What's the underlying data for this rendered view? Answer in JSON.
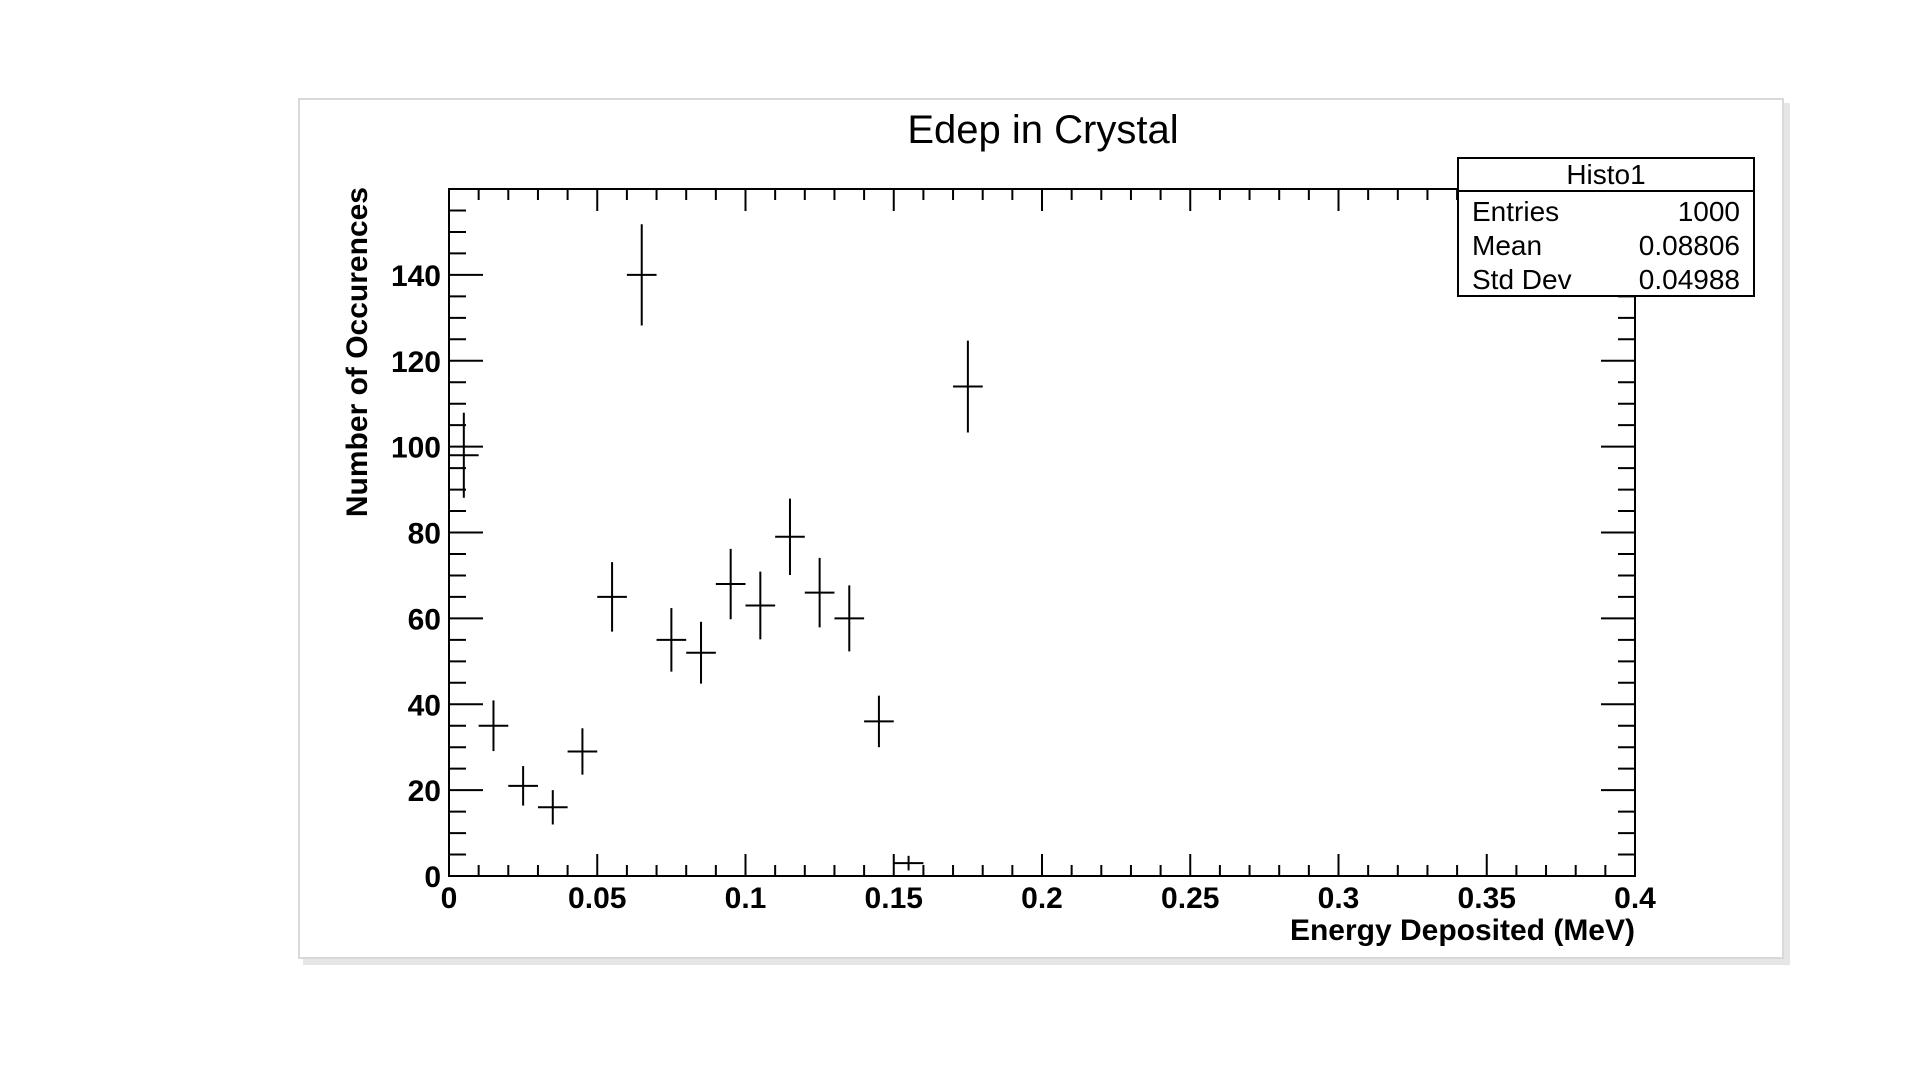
{
  "chart_data": {
    "type": "scatter",
    "title": "Edep in Crystal",
    "xlabel": "Energy Deposited (MeV)",
    "ylabel": "Number of Occurences",
    "xlim": [
      0,
      0.4
    ],
    "ylim": [
      0,
      160
    ],
    "x_ticks": [
      {
        "value": 0,
        "label": "0"
      },
      {
        "value": 0.05,
        "label": "0.05"
      },
      {
        "value": 0.1,
        "label": "0.1"
      },
      {
        "value": 0.15,
        "label": "0.15"
      },
      {
        "value": 0.2,
        "label": "0.2"
      },
      {
        "value": 0.25,
        "label": "0.25"
      },
      {
        "value": 0.3,
        "label": "0.3"
      },
      {
        "value": 0.35,
        "label": "0.35"
      },
      {
        "value": 0.4,
        "label": "0.4"
      }
    ],
    "y_ticks": [
      {
        "value": 0,
        "label": "0"
      },
      {
        "value": 20,
        "label": "20"
      },
      {
        "value": 40,
        "label": "40"
      },
      {
        "value": 60,
        "label": "60"
      },
      {
        "value": 80,
        "label": "80"
      },
      {
        "value": 100,
        "label": "100"
      },
      {
        "value": 120,
        "label": "120"
      },
      {
        "value": 140,
        "label": "140"
      }
    ],
    "grid": false,
    "bin_width": 0.01,
    "points": [
      {
        "x": 0.005,
        "y": 98,
        "err": 9.9
      },
      {
        "x": 0.015,
        "y": 35,
        "err": 5.9
      },
      {
        "x": 0.025,
        "y": 21,
        "err": 4.6
      },
      {
        "x": 0.035,
        "y": 16,
        "err": 4.0
      },
      {
        "x": 0.045,
        "y": 29,
        "err": 5.4
      },
      {
        "x": 0.055,
        "y": 65,
        "err": 8.1
      },
      {
        "x": 0.065,
        "y": 140,
        "err": 11.8
      },
      {
        "x": 0.075,
        "y": 55,
        "err": 7.4
      },
      {
        "x": 0.085,
        "y": 52,
        "err": 7.2
      },
      {
        "x": 0.095,
        "y": 68,
        "err": 8.2
      },
      {
        "x": 0.105,
        "y": 63,
        "err": 7.9
      },
      {
        "x": 0.115,
        "y": 79,
        "err": 8.9
      },
      {
        "x": 0.125,
        "y": 66,
        "err": 8.1
      },
      {
        "x": 0.135,
        "y": 60,
        "err": 7.7
      },
      {
        "x": 0.145,
        "y": 36,
        "err": 6.0
      },
      {
        "x": 0.155,
        "y": 3,
        "err": 1.7
      },
      {
        "x": 0.175,
        "y": 114,
        "err": 10.7
      }
    ],
    "stats_box": {
      "title": "Histo1",
      "rows": [
        {
          "label": "Entries",
          "value": "1000"
        },
        {
          "label": "Mean",
          "value": "0.08806"
        },
        {
          "label": "Std Dev",
          "value": "0.04988"
        }
      ],
      "position": "top-right"
    }
  }
}
